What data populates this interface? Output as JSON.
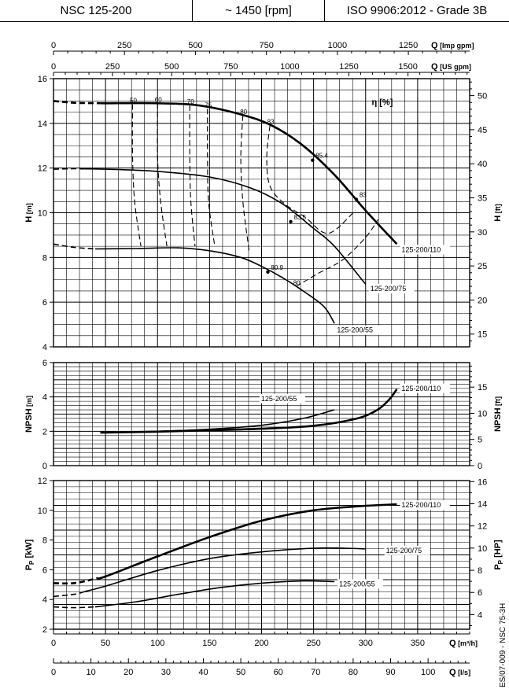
{
  "header": {
    "model": "NSC 125-200",
    "speed": "~ 1450 [rpm]",
    "standard": "ISO 9906:2012 - Grade 3B"
  },
  "side_note": "ES/07-009 - NSC 75-3H",
  "chart_data": {
    "type": "line",
    "flow_axes": {
      "q_m3h": {
        "label": "Q",
        "unit": "[m³/h]",
        "range": [
          0,
          400
        ],
        "ticks": [
          0,
          50,
          100,
          150,
          200,
          250,
          300,
          350
        ]
      },
      "q_ls": {
        "label": "Q",
        "unit": "[l/s]",
        "range": [
          0,
          111.1
        ],
        "ticks": [
          0,
          10,
          20,
          30,
          40,
          50,
          60,
          70,
          80,
          90,
          100
        ]
      },
      "q_imp_gpm": {
        "label": "Q",
        "unit": "[Imp gpm]",
        "range": [
          0,
          1466
        ],
        "ticks": [
          0,
          250,
          500,
          750,
          1000,
          1250
        ]
      },
      "q_us_gpm": {
        "label": "Q",
        "unit": "[US gpm]",
        "range": [
          0,
          1761
        ],
        "ticks": [
          0,
          250,
          500,
          750,
          1000,
          1250,
          1500
        ]
      }
    },
    "panels": [
      {
        "id": "head",
        "ylabel_left": "H",
        "unit_left": "[m]",
        "ylim": [
          4,
          16
        ],
        "yticks": [
          4,
          6,
          8,
          10,
          12,
          14,
          16
        ],
        "ylabel_right": "H",
        "unit_right": "[ft]",
        "yticks_right": [
          15,
          20,
          25,
          30,
          35,
          40,
          45,
          50
        ],
        "grid": true,
        "eta_label": "η [%]",
        "series": [
          {
            "name": "125-200/110",
            "dashed_until": 42,
            "x": [
              0,
              20,
              50,
              100,
              140,
              180,
              210,
              240,
              270,
              300,
              330
            ],
            "y": [
              15.0,
              14.92,
              14.9,
              14.9,
              14.8,
              14.4,
              13.9,
              13.0,
              11.7,
              10.1,
              8.6
            ]
          },
          {
            "name": "125-200/75",
            "dashed_until": 30,
            "x": [
              0,
              20,
              50,
              100,
              150,
              190,
              220,
              250,
              270,
              300
            ],
            "y": [
              11.95,
              11.97,
              11.95,
              11.85,
              11.6,
              11.1,
              10.4,
              9.3,
              8.5,
              6.8
            ]
          },
          {
            "name": "125-200/55",
            "dashed_until": 40,
            "x": [
              0,
              20,
              40,
              80,
              120,
              150,
              180,
              200,
              220,
              240,
              260,
              270
            ],
            "y": [
              8.6,
              8.45,
              8.38,
              8.4,
              8.43,
              8.3,
              8.0,
              7.6,
              7.1,
              6.5,
              5.8,
              5.05
            ]
          }
        ],
        "efficiency_lines": [
          {
            "label": "50",
            "x": [
              76,
              76,
              78,
              84
            ],
            "y": [
              14.85,
              12.5,
              10.5,
              8.5
            ]
          },
          {
            "label": "60",
            "x": [
              100,
              100,
              103,
              109
            ],
            "y": [
              14.9,
              12.5,
              10.5,
              8.5
            ]
          },
          {
            "label": "70",
            "x": [
              131,
              131,
              132,
              136
            ],
            "y": [
              14.8,
              12.5,
              10.5,
              8.5
            ]
          },
          {
            "label": "75",
            "x": [
              148,
              148,
              149,
              155
            ],
            "y": [
              14.65,
              12.5,
              10.5,
              8.5
            ]
          },
          {
            "label": "80",
            "x": [
              182,
              180,
              182,
              188
            ],
            "y": [
              14.35,
              12.5,
              10.5,
              8.3
            ]
          },
          {
            "label": "83",
            "x": [
              208,
              205,
              208,
              222,
              242,
              258,
              270,
              290
            ],
            "y": [
              13.9,
              12.5,
              11.2,
              10.4,
              9.8,
              9.15,
              9.2,
              10.1
            ]
          },
          {
            "label": "85.4",
            "x": [
              249
            ],
            "y": [
              12.35
            ]
          },
          {
            "label": "83.5",
            "x": [
              228
            ],
            "y": [
              9.6
            ]
          },
          {
            "label": "83",
            "x": [
              291
            ],
            "y": [
              10.6
            ]
          },
          {
            "label": "80.9",
            "x": [
              206
            ],
            "y": [
              7.35
            ]
          },
          {
            "label": "80",
            "x": [
              233,
              255,
              278,
              300,
              312
            ],
            "y": [
              6.7,
              7.3,
              7.9,
              8.9,
              9.7
            ]
          }
        ],
        "curve_labels": [
          "125-200/110",
          "125-200/75",
          "125-200/55"
        ]
      },
      {
        "id": "npsh",
        "ylabel_left": "NPSH",
        "unit_left": "[m]",
        "ylim": [
          0,
          6
        ],
        "yticks": [
          0,
          2,
          4,
          6
        ],
        "ylabel_right": "NPSH",
        "unit_right": "[ft]",
        "yticks_right": [
          0,
          5,
          10,
          15
        ],
        "grid": true,
        "series": [
          {
            "name": "125-200/110",
            "x": [
              45,
              100,
              150,
              200,
              250,
              290,
              310,
              322,
              330
            ],
            "y": [
              1.92,
              1.98,
              2.06,
              2.15,
              2.32,
              2.72,
              3.2,
              3.8,
              4.45
            ]
          },
          {
            "name": "125-200/55",
            "x": [
              45,
              100,
              150,
              200,
              240,
              270
            ],
            "y": [
              1.92,
              2.0,
              2.12,
              2.35,
              2.75,
              3.25
            ]
          }
        ],
        "curve_labels": [
          "125-200/110",
          "125-200/55"
        ]
      },
      {
        "id": "power",
        "ylabel_left": "P",
        "ylabel_sub": "P",
        "unit_left": "[kW]",
        "ylim": [
          2,
          12
        ],
        "yticks": [
          2,
          4,
          6,
          8,
          10,
          12
        ],
        "ylabel_right": "P",
        "unit_right": "[HP]",
        "yticks_right": [
          4,
          6,
          8,
          10,
          12,
          14,
          16
        ],
        "grid": true,
        "series": [
          {
            "name": "125-200/110",
            "dashed_until": 42,
            "x": [
              0,
              20,
              50,
              100,
              150,
              200,
              250,
              300,
              330
            ],
            "y": [
              5.1,
              5.1,
              5.55,
              6.9,
              8.2,
              9.3,
              10.0,
              10.3,
              10.4
            ]
          },
          {
            "name": "125-200/75",
            "dashed_until": 30,
            "x": [
              0,
              20,
              50,
              100,
              150,
              200,
              250,
              280,
              300
            ],
            "y": [
              4.2,
              4.35,
              4.9,
              5.95,
              6.75,
              7.2,
              7.45,
              7.45,
              7.4
            ]
          },
          {
            "name": "125-200/55",
            "dashed_until": 40,
            "x": [
              0,
              20,
              40,
              80,
              120,
              160,
              200,
              240,
              270
            ],
            "y": [
              3.5,
              3.45,
              3.5,
              3.85,
              4.35,
              4.8,
              5.1,
              5.25,
              5.2
            ]
          }
        ],
        "curve_labels": [
          "125-200/110",
          "125-200/75",
          "125-200/55"
        ]
      }
    ]
  }
}
